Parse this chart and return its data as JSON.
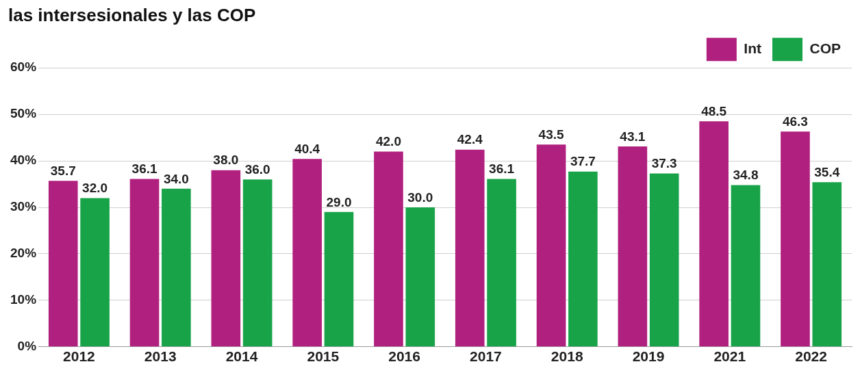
{
  "chart_data": {
    "type": "bar",
    "title": "las intersesionales y las COP",
    "categories": [
      "2012",
      "2013",
      "2014",
      "2015",
      "2016",
      "2017",
      "2018",
      "2019",
      "2021",
      "2022"
    ],
    "series": [
      {
        "name": "Int",
        "color": "#b0207f",
        "values": [
          35.7,
          36.1,
          38.0,
          40.4,
          42.0,
          42.4,
          43.5,
          43.1,
          48.5,
          46.3
        ],
        "value_labels": [
          "35.7",
          "36.1",
          "38.0",
          "40.4",
          "42.0",
          "42.4",
          "43.5",
          "43.1",
          "48.5",
          "46.3"
        ]
      },
      {
        "name": "COP",
        "color": "#18a349",
        "values": [
          32.0,
          34.0,
          36.0,
          29.0,
          30.0,
          36.1,
          37.7,
          37.3,
          34.8,
          35.4
        ],
        "value_labels": [
          "32.0",
          "34.0",
          "36.0",
          "29.0",
          "30.0",
          "36.1",
          "37.7",
          "37.3",
          "34.8",
          "35.4"
        ]
      }
    ],
    "ylim": [
      0,
      60
    ],
    "yticks": [
      {
        "value": 0,
        "label": "0%"
      },
      {
        "value": 10,
        "label": "10%"
      },
      {
        "value": 20,
        "label": "20%"
      },
      {
        "value": 30,
        "label": "30%"
      },
      {
        "value": 40,
        "label": "40%"
      },
      {
        "value": 50,
        "label": "50%"
      },
      {
        "value": 60,
        "label": "60%"
      }
    ],
    "grid": "y",
    "legend": "top right"
  }
}
